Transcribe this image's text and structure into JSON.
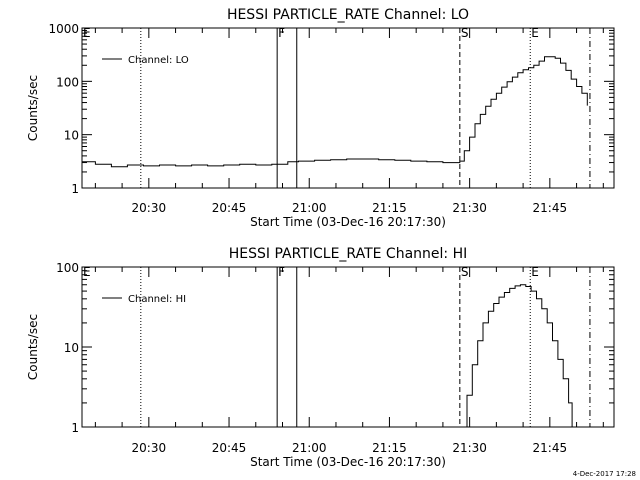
{
  "chart_data": [
    {
      "type": "line",
      "title": "HESSI PARTICLE_RATE Channel: LO",
      "xlabel": "Start Time (03-Dec-16 20:17:30)",
      "ylabel": "Counts/sec",
      "y_scale": "log",
      "ylim": [
        1,
        1000
      ],
      "y_ticks": [
        "1",
        "10",
        "100",
        "1000"
      ],
      "x_ticks": [
        "20:30",
        "20:45",
        "21:00",
        "21:15",
        "21:30",
        "21:45"
      ],
      "legend": {
        "label": "Channel: LO",
        "placement": "top-left"
      },
      "markers": [
        {
          "label": "E",
          "time": "20:17:30",
          "style": "dotted"
        },
        {
          "label": "",
          "time": "20:28:30",
          "style": "dotted"
        },
        {
          "label": "F",
          "time": "20:54:00",
          "style": "solid"
        },
        {
          "label": "",
          "time": "20:57:40",
          "style": "solid"
        },
        {
          "label": "S",
          "time": "21:28:10",
          "style": "dashed"
        },
        {
          "label": "E",
          "time": "21:41:20",
          "style": "dotted"
        },
        {
          "label": "",
          "time": "21:52:30",
          "style": "dashdot"
        }
      ],
      "series": [
        {
          "name": "Channel: LO",
          "x": [
            "20:17:30",
            "20:20:00",
            "20:23:00",
            "20:26:00",
            "20:29:00",
            "20:32:00",
            "20:35:00",
            "20:38:00",
            "20:41:00",
            "20:44:00",
            "20:47:00",
            "20:50:00",
            "20:53:00",
            "20:56:00",
            "20:58:00",
            "21:01:00",
            "21:04:00",
            "21:07:00",
            "21:10:00",
            "21:13:00",
            "21:16:00",
            "21:19:00",
            "21:22:00",
            "21:25:00",
            "21:27:00",
            "21:28:10",
            "21:29:00",
            "21:30:00",
            "21:31:00",
            "21:32:00",
            "21:33:00",
            "21:34:00",
            "21:35:00",
            "21:36:00",
            "21:37:00",
            "21:38:00",
            "21:39:00",
            "21:40:00",
            "21:41:00",
            "21:42:00",
            "21:43:00",
            "21:44:00",
            "21:45:00",
            "21:46:00",
            "21:47:00",
            "21:48:00",
            "21:49:00",
            "21:50:00",
            "21:51:00",
            "21:52:00"
          ],
          "y": [
            3.1,
            2.8,
            2.5,
            2.7,
            2.6,
            2.7,
            2.6,
            2.7,
            2.6,
            2.7,
            2.8,
            2.7,
            2.8,
            3.1,
            3.2,
            3.3,
            3.4,
            3.5,
            3.5,
            3.4,
            3.3,
            3.2,
            3.1,
            3.0,
            3.0,
            3.2,
            5,
            9,
            16,
            24,
            34,
            46,
            60,
            78,
            98,
            120,
            145,
            165,
            180,
            200,
            240,
            290,
            290,
            270,
            220,
            160,
            110,
            80,
            60,
            35
          ]
        }
      ]
    },
    {
      "type": "line",
      "title": "HESSI PARTICLE_RATE Channel: HI",
      "xlabel": "Start Time (03-Dec-16 20:17:30)",
      "ylabel": "Counts/sec",
      "y_scale": "log",
      "ylim": [
        1,
        100
      ],
      "y_ticks": [
        "1",
        "10",
        "100"
      ],
      "x_ticks": [
        "20:30",
        "20:45",
        "21:00",
        "21:15",
        "21:30",
        "21:45"
      ],
      "legend": {
        "label": "Channel: HI",
        "placement": "top-left"
      },
      "markers": [
        {
          "label": "E",
          "time": "20:17:30",
          "style": "dotted"
        },
        {
          "label": "",
          "time": "20:28:30",
          "style": "dotted"
        },
        {
          "label": "F",
          "time": "20:54:00",
          "style": "solid"
        },
        {
          "label": "",
          "time": "20:57:40",
          "style": "solid"
        },
        {
          "label": "S",
          "time": "21:28:10",
          "style": "dashed"
        },
        {
          "label": "E",
          "time": "21:41:20",
          "style": "dotted"
        },
        {
          "label": "",
          "time": "21:52:30",
          "style": "dashdot"
        }
      ],
      "series": [
        {
          "name": "Channel: HI",
          "x": [
            "21:28:50",
            "21:29:30",
            "21:30:30",
            "21:31:30",
            "21:32:30",
            "21:33:30",
            "21:34:30",
            "21:35:30",
            "21:36:30",
            "21:37:30",
            "21:38:30",
            "21:39:30",
            "21:40:30",
            "21:41:30",
            "21:42:30",
            "21:43:30",
            "21:44:30",
            "21:45:30",
            "21:46:30",
            "21:47:30",
            "21:48:30",
            "21:49:10"
          ],
          "y": [
            1,
            2.5,
            6,
            12,
            20,
            28,
            35,
            42,
            48,
            54,
            58,
            60,
            57,
            50,
            40,
            30,
            20,
            12,
            7,
            4,
            2,
            1
          ]
        }
      ]
    }
  ],
  "footer": {
    "timestamp": "4-Dec-2017 17:28"
  }
}
